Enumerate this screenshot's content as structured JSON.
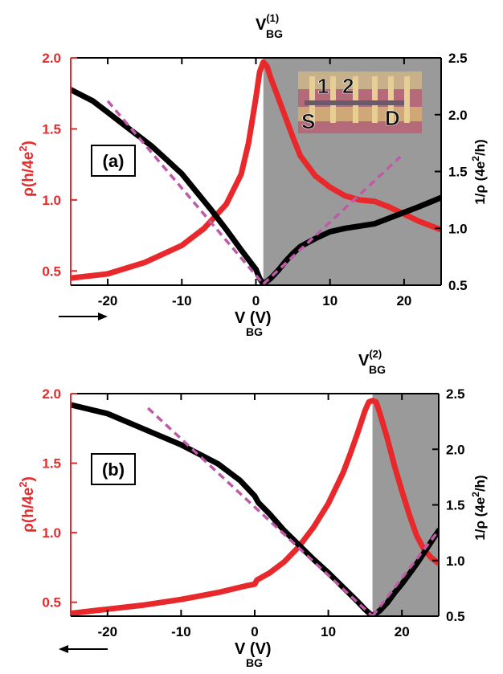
{
  "colors": {
    "rho": "#e8282a",
    "inv_rho": "#000000",
    "fit": "#c05aa8",
    "shade": "#9a9a9a",
    "axis_left": "#e8282a",
    "axis_right": "#000000"
  },
  "chart_data": [
    {
      "type": "line",
      "panel_label": "(a)",
      "top_label": {
        "main": "V",
        "sub": "BG",
        "sup": "(1)"
      },
      "x_label": {
        "main": "V",
        "sub": "BG",
        "unit": "(V)"
      },
      "y_left_label": {
        "text": "ρ(h/4e",
        "sup": "2",
        "close": ")"
      },
      "y_right_label": {
        "text": "1/ρ  (4e",
        "sup": "2",
        "close": "/h)"
      },
      "xlim": [
        -25,
        25
      ],
      "ylim_left": [
        0.4,
        2.0
      ],
      "ylim_right": [
        0.5,
        2.5
      ],
      "x_ticks": [
        -20,
        -10,
        0,
        10,
        20
      ],
      "x_tick_labels": [
        "-20",
        "-10",
        "0",
        "10",
        "20"
      ],
      "y_left_ticks": [
        0.5,
        1.0,
        1.5,
        2.0
      ],
      "y_left_tick_labels": [
        "0.5",
        "1.0",
        "1.5",
        "2.0"
      ],
      "y_right_ticks": [
        0.5,
        1.0,
        1.5,
        2.0,
        2.5
      ],
      "y_right_tick_labels": [
        "0.5",
        "1.0",
        "1.5",
        "2.0",
        "2.5"
      ],
      "shade_from": 1,
      "sweep_direction": "right",
      "inset": {
        "labels": [
          "1",
          "2",
          "S",
          "D"
        ]
      },
      "series": [
        {
          "axis": "left",
          "x": [
            -25,
            -20,
            -15,
            -10,
            -7,
            -4,
            -2,
            -1,
            0,
            0.5,
            1,
            1.5,
            2,
            3,
            4,
            5,
            6,
            8,
            10,
            12,
            14,
            16,
            18,
            20,
            22,
            25
          ],
          "y": [
            0.45,
            0.48,
            0.56,
            0.68,
            0.8,
            0.97,
            1.18,
            1.4,
            1.72,
            1.9,
            1.97,
            1.94,
            1.86,
            1.72,
            1.58,
            1.44,
            1.31,
            1.17,
            1.09,
            1.03,
            1.0,
            0.99,
            0.95,
            0.9,
            0.85,
            0.79
          ]
        },
        {
          "axis": "right",
          "x": [
            -25,
            -22,
            -20,
            -18,
            -16,
            -14,
            -12,
            -10,
            -8,
            -6,
            -4,
            -2,
            0,
            0.5,
            1,
            2,
            3,
            4,
            5,
            6,
            8,
            10,
            12,
            14,
            16,
            18,
            20,
            22,
            25
          ],
          "y": [
            2.22,
            2.12,
            2.02,
            1.92,
            1.82,
            1.72,
            1.6,
            1.48,
            1.32,
            1.16,
            0.99,
            0.81,
            0.64,
            0.56,
            0.51,
            0.56,
            0.63,
            0.71,
            0.78,
            0.84,
            0.91,
            0.97,
            1.0,
            1.02,
            1.04,
            1.09,
            1.14,
            1.19,
            1.27
          ]
        }
      ],
      "fits": [
        {
          "x": [
            -20,
            1
          ],
          "y": [
            2.12,
            0.51
          ]
        },
        {
          "x": [
            1,
            19.5
          ],
          "y": [
            0.51,
            1.63
          ]
        }
      ]
    },
    {
      "type": "line",
      "panel_label": "(b)",
      "top_label": {
        "main": "V",
        "sub": "BG",
        "sup": "(2)"
      },
      "x_label": {
        "main": "V",
        "sub": "BG",
        "unit": "(V)"
      },
      "y_left_label": {
        "text": "ρ(h/4e",
        "sup": "2",
        "close": ")"
      },
      "y_right_label": {
        "text": "1/ρ  (4e",
        "sup": "2",
        "close": "/h)"
      },
      "xlim": [
        -25,
        25
      ],
      "ylim_left": [
        0.4,
        2.0
      ],
      "ylim_right": [
        0.5,
        2.5
      ],
      "x_ticks": [
        -20,
        -10,
        0,
        10,
        20
      ],
      "x_tick_labels": [
        "-20",
        "-10",
        "0",
        "10",
        "20"
      ],
      "y_left_ticks": [
        0.5,
        1.0,
        1.5,
        2.0
      ],
      "y_left_tick_labels": [
        "0.5",
        "1.0",
        "1.5",
        "2.0"
      ],
      "y_right_ticks": [
        0.5,
        1.0,
        1.5,
        2.0,
        2.5
      ],
      "y_right_tick_labels": [
        "0.5",
        "1.0",
        "1.5",
        "2.0",
        "2.5"
      ],
      "shade_from": 16,
      "sweep_direction": "left",
      "series": [
        {
          "axis": "left",
          "x": [
            -25,
            -20,
            -15,
            -10,
            -5,
            -1,
            0,
            0.3,
            2,
            4,
            6,
            8,
            10,
            12,
            13,
            14,
            15,
            15.5,
            16,
            16.5,
            17,
            18,
            19,
            20,
            21,
            22,
            23,
            24,
            25
          ],
          "y": [
            0.42,
            0.45,
            0.48,
            0.52,
            0.57,
            0.62,
            0.63,
            0.66,
            0.71,
            0.79,
            0.9,
            1.04,
            1.21,
            1.43,
            1.57,
            1.72,
            1.88,
            1.94,
            1.95,
            1.94,
            1.86,
            1.68,
            1.48,
            1.3,
            1.13,
            0.98,
            0.88,
            0.82,
            0.78
          ]
        },
        {
          "axis": "right",
          "x": [
            -25,
            -20,
            -15,
            -10,
            -5,
            -2,
            0,
            0.5,
            2,
            4,
            6,
            8,
            10,
            12,
            14,
            15,
            16,
            17,
            18,
            19,
            20,
            21,
            22,
            23,
            24,
            25
          ],
          "y": [
            2.4,
            2.32,
            2.18,
            2.04,
            1.87,
            1.72,
            1.58,
            1.52,
            1.42,
            1.27,
            1.14,
            1.01,
            0.89,
            0.76,
            0.63,
            0.56,
            0.5,
            0.55,
            0.62,
            0.71,
            0.79,
            0.88,
            0.97,
            1.07,
            1.17,
            1.27
          ]
        }
      ],
      "fits": [
        {
          "x": [
            -14.5,
            16
          ],
          "y": [
            2.37,
            0.5
          ]
        },
        {
          "x": [
            16,
            25
          ],
          "y": [
            0.5,
            1.27
          ]
        }
      ]
    }
  ]
}
